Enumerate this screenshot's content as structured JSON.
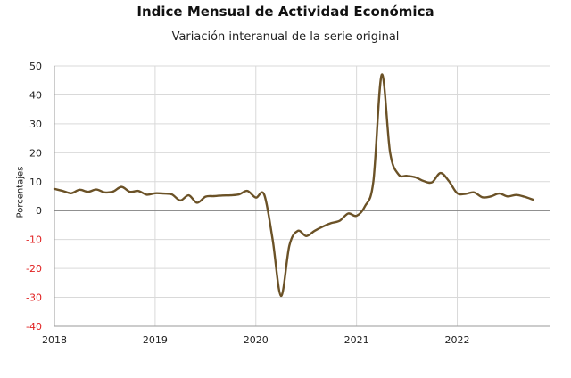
{
  "chart_data": {
    "type": "line",
    "title": "Indice Mensual de  Actividad Económica",
    "subtitle": "Variación interanual de la serie original",
    "ylabel": "Porcentajes",
    "xlabel": "",
    "ylim": [
      -40,
      50
    ],
    "yticks": [
      "50",
      "40",
      "30",
      "20",
      "10",
      "0",
      "-10",
      "-20",
      "-30",
      "-40"
    ],
    "xticks": [
      "2018",
      "2019",
      "2020",
      "2021",
      "2022"
    ],
    "grid": true,
    "legend": "none",
    "colors": {
      "line": "#6b5227",
      "grid": "#d9d9d9",
      "zero_line": "#808080",
      "negative_tick": "#e02020",
      "positive_tick": "#222222"
    },
    "x_start": "2018-01",
    "x_end": "2022-10",
    "series": [
      {
        "values": [
          7.5,
          6.8,
          6.0,
          7.2,
          6.5,
          7.3,
          6.3,
          6.6,
          8.2,
          6.5,
          6.8,
          5.5,
          6.0,
          5.9,
          5.6,
          3.5,
          5.3,
          2.7,
          4.8,
          5.0,
          5.2,
          5.3,
          5.6,
          6.8,
          4.5,
          5.5,
          -10.0,
          -29.5,
          -12.0,
          -7.0,
          -8.8,
          -7.0,
          -5.5,
          -4.3,
          -3.5,
          -1.0,
          -1.8,
          1.5,
          10.0,
          47.0,
          20.0,
          12.5,
          12.0,
          11.5,
          10.2,
          9.8,
          13.0,
          10.2,
          6.0,
          5.8,
          6.3,
          4.6,
          4.9,
          5.9,
          4.9,
          5.4,
          4.8,
          3.8
        ]
      }
    ]
  }
}
